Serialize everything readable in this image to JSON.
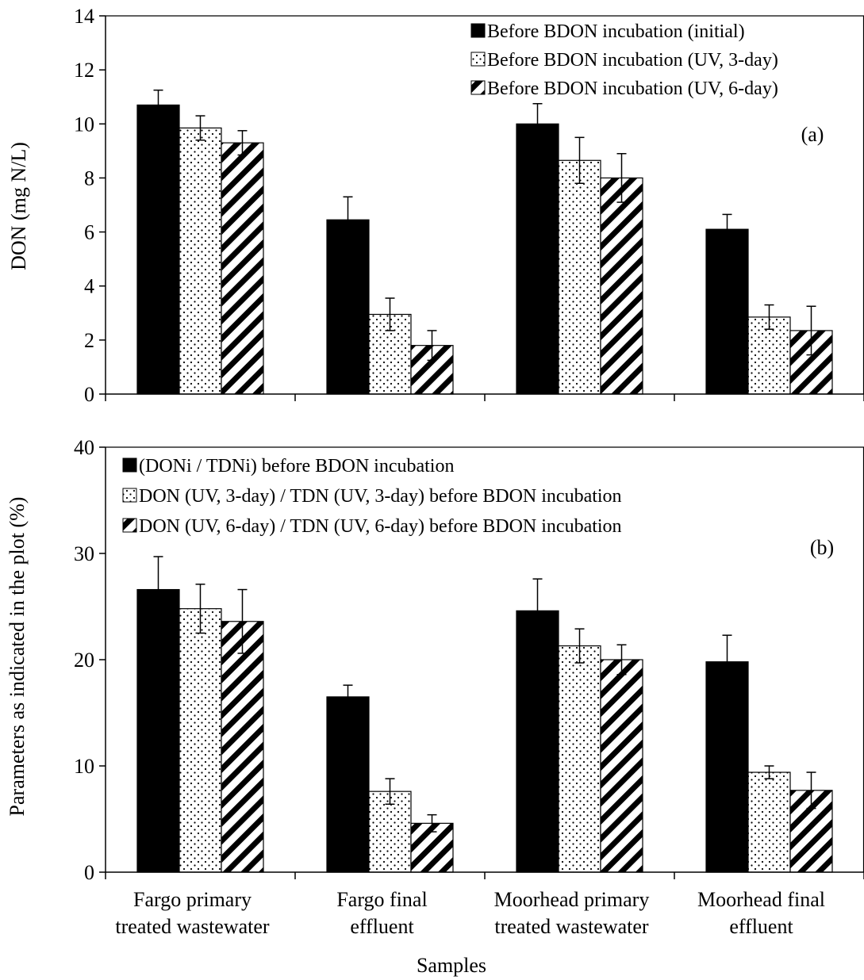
{
  "chart_data": [
    {
      "type": "bar",
      "panel": "(a)",
      "ylabel": "DON (mg N/L)",
      "ylim": [
        0,
        14
      ],
      "yticks": [
        0,
        2,
        4,
        6,
        8,
        10,
        12,
        14
      ],
      "categories": [
        "Fargo primary treated wastewater",
        "Fargo final effluent",
        "Moorhead primary treated wastewater",
        "Moorhead final effluent"
      ],
      "legend_position": "top-right",
      "series": [
        {
          "name": "Before BDON incubation (initial)",
          "pattern": "solid",
          "values": [
            10.7,
            6.45,
            10.0,
            6.1
          ],
          "errors": [
            0.55,
            0.85,
            0.75,
            0.55
          ]
        },
        {
          "name": "Before BDON incubation (UV, 3-day)",
          "pattern": "dots",
          "values": [
            9.85,
            2.95,
            8.65,
            2.85
          ],
          "errors": [
            0.45,
            0.6,
            0.85,
            0.45
          ]
        },
        {
          "name": "Before BDON incubation (UV, 6-day)",
          "pattern": "stripes",
          "values": [
            9.3,
            1.8,
            8.0,
            2.35
          ],
          "errors": [
            0.45,
            0.55,
            0.9,
            0.9
          ]
        }
      ]
    },
    {
      "type": "bar",
      "panel": "(b)",
      "ylabel": "Parameters as indicated  in the plot (%)",
      "xlabel": "Samples",
      "ylim": [
        0,
        40
      ],
      "yticks": [
        0,
        10,
        20,
        30,
        40
      ],
      "categories": [
        "Fargo primary treated wastewater",
        "Fargo final effluent",
        "Moorhead primary treated wastewater",
        "Moorhead final effluent"
      ],
      "category_lines": [
        [
          "Fargo primary",
          "treated wastewater"
        ],
        [
          "Fargo final",
          "effluent"
        ],
        [
          "Moorhead primary",
          "treated wastewater"
        ],
        [
          "Moorhead final",
          "effluent"
        ]
      ],
      "legend_position": "top-left",
      "series": [
        {
          "name": "(DONi / TDNi) before BDON incubation",
          "pattern": "solid",
          "values": [
            26.6,
            16.5,
            24.6,
            19.8
          ],
          "errors": [
            3.1,
            1.1,
            3.0,
            2.5
          ]
        },
        {
          "name": "DON (UV, 3-day) / TDN (UV, 3-day) before BDON incubation",
          "pattern": "dots",
          "values": [
            24.8,
            7.6,
            21.3,
            9.4
          ],
          "errors": [
            2.3,
            1.2,
            1.6,
            0.6
          ]
        },
        {
          "name": "DON (UV, 6-day) / TDN (UV, 6-day) before BDON incubation",
          "pattern": "stripes",
          "values": [
            23.6,
            4.6,
            20.0,
            7.7
          ],
          "errors": [
            3.0,
            0.8,
            1.4,
            1.7
          ]
        }
      ]
    }
  ]
}
